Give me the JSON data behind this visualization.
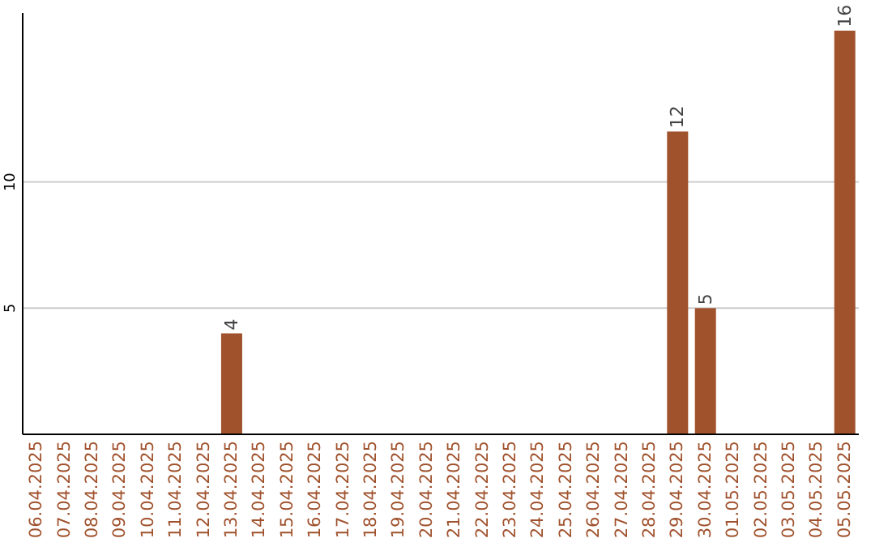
{
  "chart_data": {
    "type": "bar",
    "categories": [
      "06.04.2025",
      "07.04.2025",
      "08.04.2025",
      "09.04.2025",
      "10.04.2025",
      "11.04.2025",
      "12.04.2025",
      "13.04.2025",
      "14.04.2025",
      "15.04.2025",
      "16.04.2025",
      "17.04.2025",
      "18.04.2025",
      "19.04.2025",
      "20.04.2025",
      "21.04.2025",
      "22.04.2025",
      "23.04.2025",
      "24.04.2025",
      "25.04.2025",
      "26.04.2025",
      "27.04.2025",
      "28.04.2025",
      "29.04.2025",
      "30.04.2025",
      "01.05.2025",
      "02.05.2025",
      "03.05.2025",
      "04.05.2025",
      "05.05.2025"
    ],
    "values": [
      0,
      0,
      0,
      0,
      0,
      0,
      0,
      4,
      0,
      0,
      0,
      0,
      0,
      0,
      0,
      0,
      0,
      0,
      0,
      0,
      0,
      0,
      0,
      12,
      5,
      0,
      0,
      0,
      0,
      16
    ],
    "value_labels": [
      null,
      null,
      null,
      null,
      null,
      null,
      null,
      "4",
      null,
      null,
      null,
      null,
      null,
      null,
      null,
      null,
      null,
      null,
      null,
      null,
      null,
      null,
      null,
      "12",
      "5",
      null,
      null,
      null,
      null,
      "16"
    ],
    "color": "#a0522d",
    "ylim": [
      0,
      16.7
    ],
    "yticks": [
      5,
      10
    ],
    "grid": "y"
  }
}
